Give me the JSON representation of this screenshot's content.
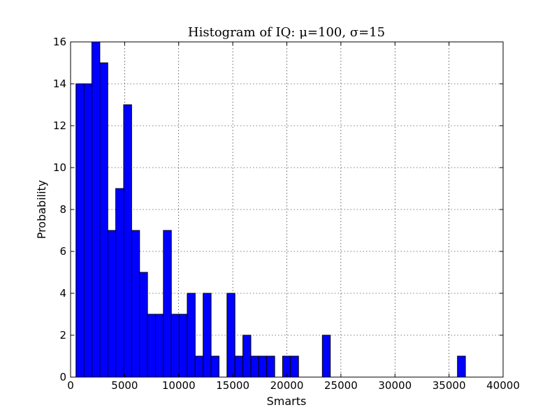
{
  "chart_data": {
    "type": "bar",
    "title": "Histogram of IQ: μ=100, σ=15",
    "xlabel": "Smarts",
    "ylabel": "Probability",
    "xlim": [
      0,
      40000
    ],
    "ylim": [
      0,
      16
    ],
    "xticks": [
      0,
      5000,
      10000,
      15000,
      20000,
      25000,
      30000,
      35000,
      40000
    ],
    "yticks": [
      0,
      2,
      4,
      6,
      8,
      10,
      12,
      14,
      16
    ],
    "grid": true,
    "bar_color": "#0000ff",
    "bin_start": 500,
    "bin_width": 735,
    "values": [
      14,
      14,
      16,
      15,
      7,
      9,
      13,
      7,
      5,
      3,
      3,
      7,
      3,
      3,
      4,
      1,
      4,
      1,
      0,
      4,
      1,
      2,
      1,
      1,
      1,
      0,
      1,
      1,
      0,
      0,
      0,
      2,
      0,
      0,
      0,
      0,
      0,
      0,
      0,
      0,
      0,
      0,
      0,
      0,
      0,
      0,
      0,
      0,
      1
    ]
  }
}
